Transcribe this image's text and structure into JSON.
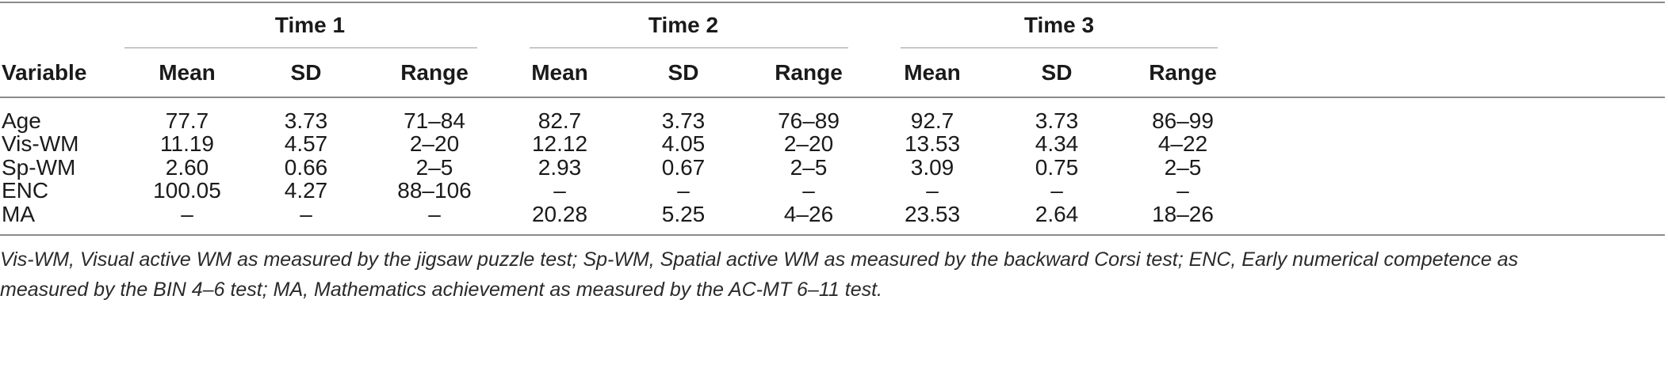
{
  "table": {
    "groups": [
      "Time 1",
      "Time 2",
      "Time 3"
    ],
    "variable_header": "Variable",
    "subheaders": [
      "Mean",
      "SD",
      "Range",
      "Mean",
      "SD",
      "Range",
      "Mean",
      "SD",
      "Range"
    ],
    "rows": [
      {
        "variable": "Age",
        "cells": [
          "77.7",
          "3.73",
          "71–84",
          "82.7",
          "3.73",
          "76–89",
          "92.7",
          "3.73",
          "86–99"
        ]
      },
      {
        "variable": "Vis-WM",
        "cells": [
          "11.19",
          "4.57",
          "2–20",
          "12.12",
          "4.05",
          "2–20",
          "13.53",
          "4.34",
          "4–22"
        ]
      },
      {
        "variable": "Sp-WM",
        "cells": [
          "2.60",
          "0.66",
          "2–5",
          "2.93",
          "0.67",
          "2–5",
          "3.09",
          "0.75",
          "2–5"
        ]
      },
      {
        "variable": "ENC",
        "cells": [
          "100.05",
          "4.27",
          "88–106",
          "–",
          "–",
          "–",
          "–",
          "–",
          "–"
        ]
      },
      {
        "variable": "MA",
        "cells": [
          "–",
          "–",
          "–",
          "20.28",
          "5.25",
          "4–26",
          "23.53",
          "2.64",
          "18–26"
        ]
      }
    ]
  },
  "note_lines": [
    "Vis-WM, Visual active WM as measured by the jigsaw puzzle test; Sp-WM, Spatial active WM as measured by the backward Corsi test; ENC, Early numerical competence as",
    "measured by the BIN 4–6 test; MA, Mathematics achievement as measured by the AC-MT 6–11 test."
  ]
}
